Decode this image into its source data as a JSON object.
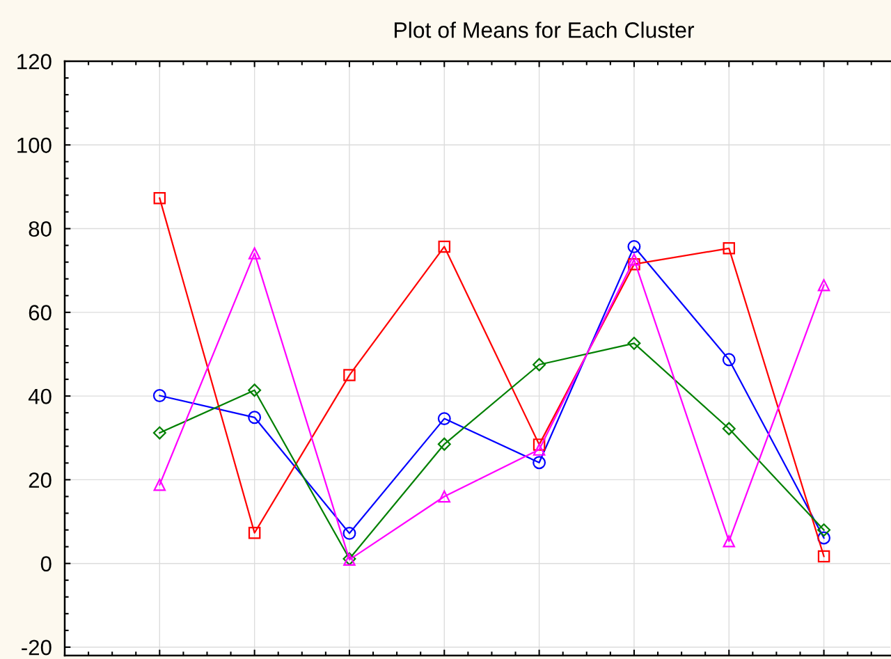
{
  "chart_data": {
    "type": "line",
    "title": "Plot of Means for Each Cluster",
    "categories": [
      null,
      null,
      null,
      null,
      null,
      null,
      null,
      null
    ],
    "series": [
      {
        "color": "#0000ff",
        "marker": "circle",
        "values": [
          40.1,
          34.9,
          7.2,
          34.6,
          24.1,
          75.7,
          48.7,
          6.1
        ]
      },
      {
        "color": "#ff0000",
        "marker": "square",
        "values": [
          87.3,
          7.3,
          45.0,
          75.7,
          28.4,
          71.5,
          75.3,
          1.7
        ]
      },
      {
        "color": "#008000",
        "marker": "diamond",
        "values": [
          31.2,
          41.4,
          1.1,
          28.5,
          47.5,
          52.6,
          32.2,
          8.0
        ]
      },
      {
        "color": "#ff00ff",
        "marker": "triangle",
        "values": [
          18.8,
          74.1,
          0.9,
          16.0,
          27.2,
          72.6,
          5.3,
          66.5
        ]
      }
    ],
    "ylim": [
      -22,
      120
    ],
    "yticks": [
      -20,
      0,
      20,
      40,
      60,
      80,
      100,
      120
    ],
    "grid": true
  }
}
